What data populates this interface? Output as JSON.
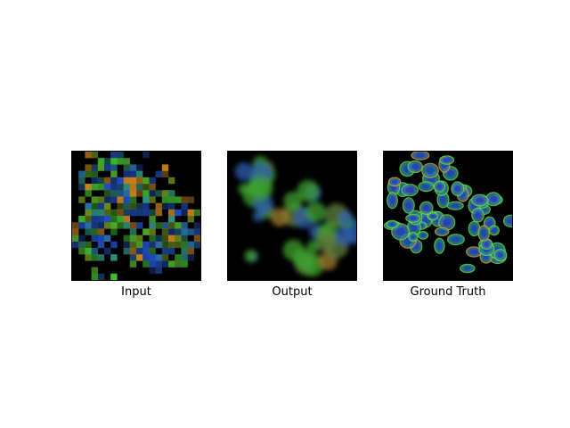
{
  "panels": [
    {
      "caption": "Input"
    },
    {
      "caption": "Output"
    },
    {
      "caption": "Ground Truth"
    }
  ],
  "palette": {
    "background": "#000000",
    "cell_blue": "#1f4fbf",
    "cell_green": "#3fbf2f",
    "cell_teal": "#2f8f7f",
    "cell_orange": "#c8801f",
    "cell_olive": "#6f8f1f"
  }
}
